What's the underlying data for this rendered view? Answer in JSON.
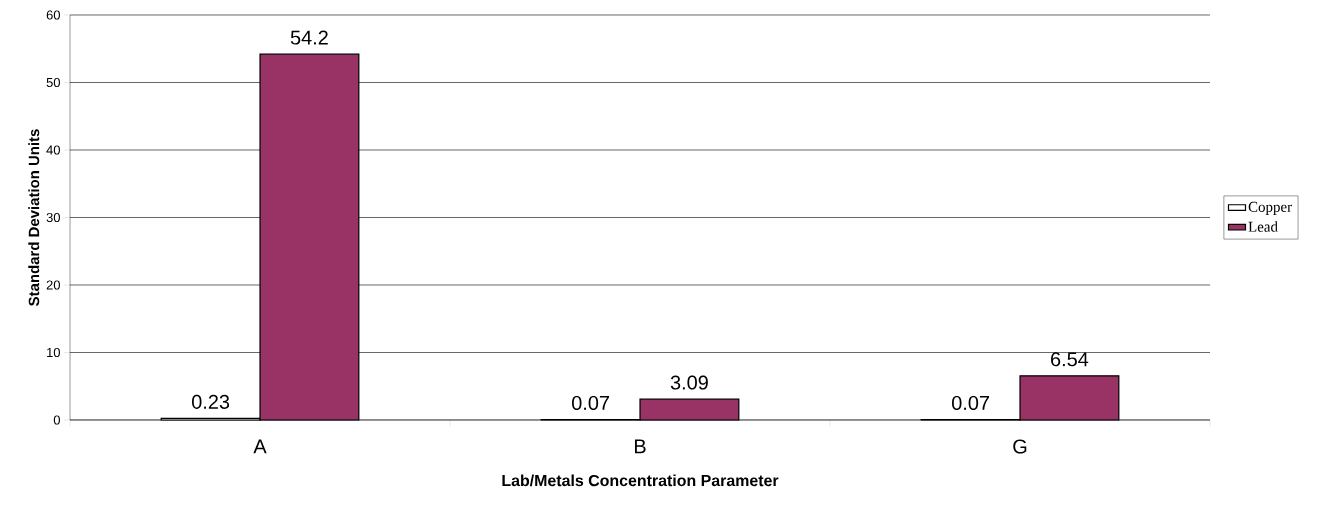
{
  "chart_data": {
    "type": "bar",
    "xlabel": "Lab/Metals Concentration Parameter",
    "ylabel": "Standard Deviation Units",
    "categories": [
      "A",
      "B",
      "G"
    ],
    "series": [
      {
        "name": "Copper",
        "color": "#ffffff",
        "values": [
          0.23,
          0.07,
          0.07
        ]
      },
      {
        "name": "Lead",
        "color": "#993366",
        "values": [
          54.2,
          3.09,
          6.54
        ]
      }
    ],
    "ylim": [
      0,
      60
    ],
    "yticks": [
      0,
      10,
      20,
      30,
      40,
      50,
      60
    ],
    "grid": "y",
    "legend": "right",
    "data_labels": true
  }
}
